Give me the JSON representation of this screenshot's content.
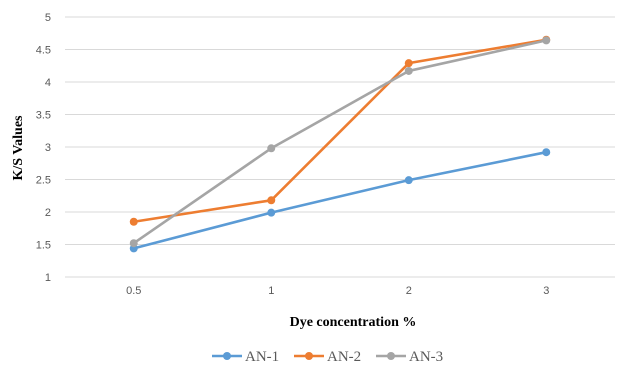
{
  "chart_data": {
    "type": "line",
    "categories": [
      "0.5",
      "1",
      "2",
      "3"
    ],
    "series": [
      {
        "name": "AN-1",
        "color": "#5B9BD5",
        "values": [
          1.44,
          1.99,
          2.49,
          2.92
        ]
      },
      {
        "name": "AN-2",
        "color": "#ED7D31",
        "values": [
          1.85,
          2.18,
          4.29,
          4.65
        ]
      },
      {
        "name": "AN-3",
        "color": "#A5A5A5",
        "values": [
          1.52,
          2.98,
          4.17,
          4.64
        ]
      }
    ],
    "xlabel": "Dye concentration %",
    "ylabel": "K/S Values",
    "ylim": [
      1,
      5
    ],
    "yticks": [
      "1",
      "1.5",
      "2",
      "2.5",
      "3",
      "3.5",
      "4",
      "4.5",
      "5"
    ],
    "grid": true,
    "legend_position": "bottom"
  }
}
